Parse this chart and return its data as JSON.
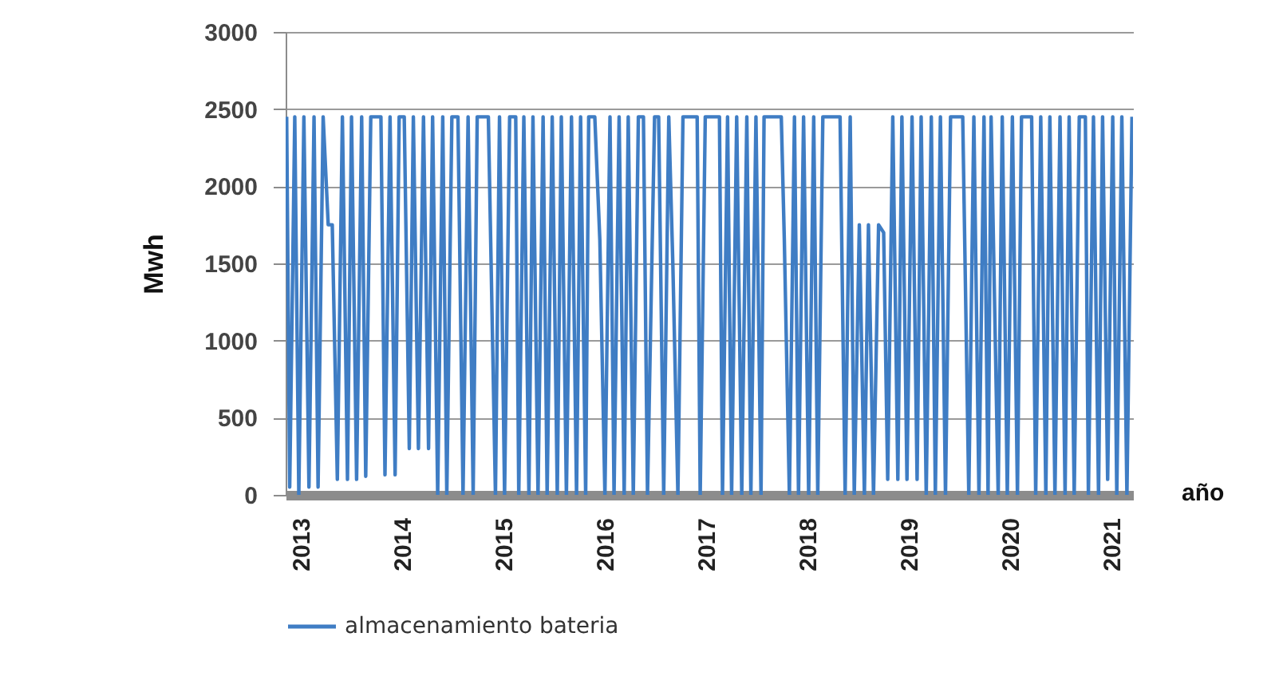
{
  "chart_data": {
    "type": "line",
    "xlabel": "año",
    "ylabel": "Mwh",
    "xlim": [
      2012.85,
      2021.21
    ],
    "xticks": [
      2013,
      2014,
      2015,
      2016,
      2017,
      2018,
      2019,
      2020,
      2021
    ],
    "ylim": [
      0,
      3000
    ],
    "yticks": [
      0,
      500,
      1000,
      1500,
      2000,
      2500,
      3000
    ],
    "grid": "y",
    "legend": "bottom",
    "series": [
      {
        "name": "almacenamiento  bateria",
        "color": "#3f7dc4",
        "x": [
          2012.86,
          2012.89,
          2012.94,
          2012.98,
          2013.03,
          2013.08,
          2013.13,
          2013.17,
          2013.22,
          2013.27,
          2013.31,
          2013.36,
          2013.41,
          2013.46,
          2013.5,
          2013.55,
          2013.6,
          2013.64,
          2013.69,
          2013.72,
          2013.79,
          2013.83,
          2013.88,
          2013.93,
          2013.97,
          2014.02,
          2014.07,
          2014.11,
          2014.16,
          2014.21,
          2014.26,
          2014.3,
          2014.35,
          2014.4,
          2014.44,
          2014.49,
          2014.55,
          2014.6,
          2014.65,
          2014.7,
          2014.74,
          2014.85,
          2014.92,
          2014.96,
          2015.01,
          2015.06,
          2015.12,
          2015.15,
          2015.2,
          2015.25,
          2015.29,
          2015.34,
          2015.39,
          2015.43,
          2015.48,
          2015.53,
          2015.57,
          2015.62,
          2015.67,
          2015.72,
          2015.76,
          2015.81,
          2015.84,
          2015.9,
          2015.95,
          2016.0,
          2016.05,
          2016.09,
          2016.14,
          2016.19,
          2016.23,
          2016.28,
          2016.33,
          2016.38,
          2016.42,
          2016.49,
          2016.53,
          2016.58,
          2016.63,
          2016.67,
          2016.72,
          2016.77,
          2016.91,
          2016.94,
          2016.99,
          2017.13,
          2017.16,
          2017.21,
          2017.25,
          2017.3,
          2017.35,
          2017.4,
          2017.44,
          2017.49,
          2017.54,
          2017.57,
          2017.74,
          2017.77,
          2017.82,
          2017.87,
          2017.91,
          2017.96,
          2018.01,
          2018.06,
          2018.1,
          2018.15,
          2018.18,
          2018.32,
          2018.37,
          2018.42,
          2018.46,
          2018.51,
          2018.56,
          2018.6,
          2018.65,
          2018.7,
          2018.75,
          2018.79,
          2018.84,
          2018.89,
          2018.93,
          2018.98,
          2019.03,
          2019.08,
          2019.12,
          2019.17,
          2019.22,
          2019.26,
          2019.31,
          2019.36,
          2019.41,
          2019.53,
          2019.59,
          2019.64,
          2019.69,
          2019.74,
          2019.78,
          2019.81,
          2019.88,
          2019.92,
          2019.97,
          2020.02,
          2020.07,
          2020.11,
          2020.21,
          2020.25,
          2020.3,
          2020.35,
          2020.39,
          2020.44,
          2020.49,
          2020.54,
          2020.58,
          2020.63,
          2020.68,
          2020.74,
          2020.77,
          2020.82,
          2020.87,
          2020.91,
          2020.96,
          2021.01,
          2021.05,
          2021.1,
          2021.15,
          2021.2
        ],
        "values": [
          2450,
          50,
          2450,
          0,
          2450,
          50,
          2450,
          50,
          2450,
          1750,
          1750,
          100,
          2450,
          100,
          2450,
          100,
          2450,
          120,
          2450,
          2450,
          2450,
          130,
          2450,
          130,
          2450,
          2450,
          300,
          2450,
          300,
          2450,
          300,
          2450,
          0,
          2450,
          0,
          2450,
          2450,
          0,
          2450,
          0,
          2450,
          2450,
          0,
          2450,
          0,
          2450,
          2450,
          0,
          2450,
          0,
          2450,
          0,
          2450,
          0,
          2450,
          0,
          2450,
          0,
          2450,
          0,
          2450,
          0,
          2450,
          2450,
          1650,
          0,
          2450,
          0,
          2450,
          0,
          2450,
          0,
          2450,
          2450,
          0,
          2450,
          2450,
          0,
          2450,
          1500,
          0,
          2450,
          2450,
          0,
          2450,
          2450,
          0,
          2450,
          0,
          2450,
          0,
          2450,
          0,
          2450,
          0,
          2450,
          2450,
          1650,
          0,
          2450,
          0,
          2450,
          0,
          2450,
          0,
          2450,
          2450,
          2450,
          0,
          2450,
          0,
          1750,
          0,
          1750,
          0,
          1750,
          1700,
          100,
          2450,
          100,
          2450,
          100,
          2450,
          100,
          2450,
          0,
          2450,
          0,
          2450,
          0,
          2450,
          2450,
          0,
          2450,
          0,
          2450,
          0,
          2450,
          0,
          2450,
          0,
          2450,
          0,
          2450,
          2450,
          0,
          2450,
          0,
          2450,
          0,
          2450,
          0,
          2450,
          0,
          2450,
          2450,
          0,
          2450,
          0,
          2450,
          100,
          2450,
          0,
          2450,
          0,
          2450
        ]
      }
    ]
  }
}
